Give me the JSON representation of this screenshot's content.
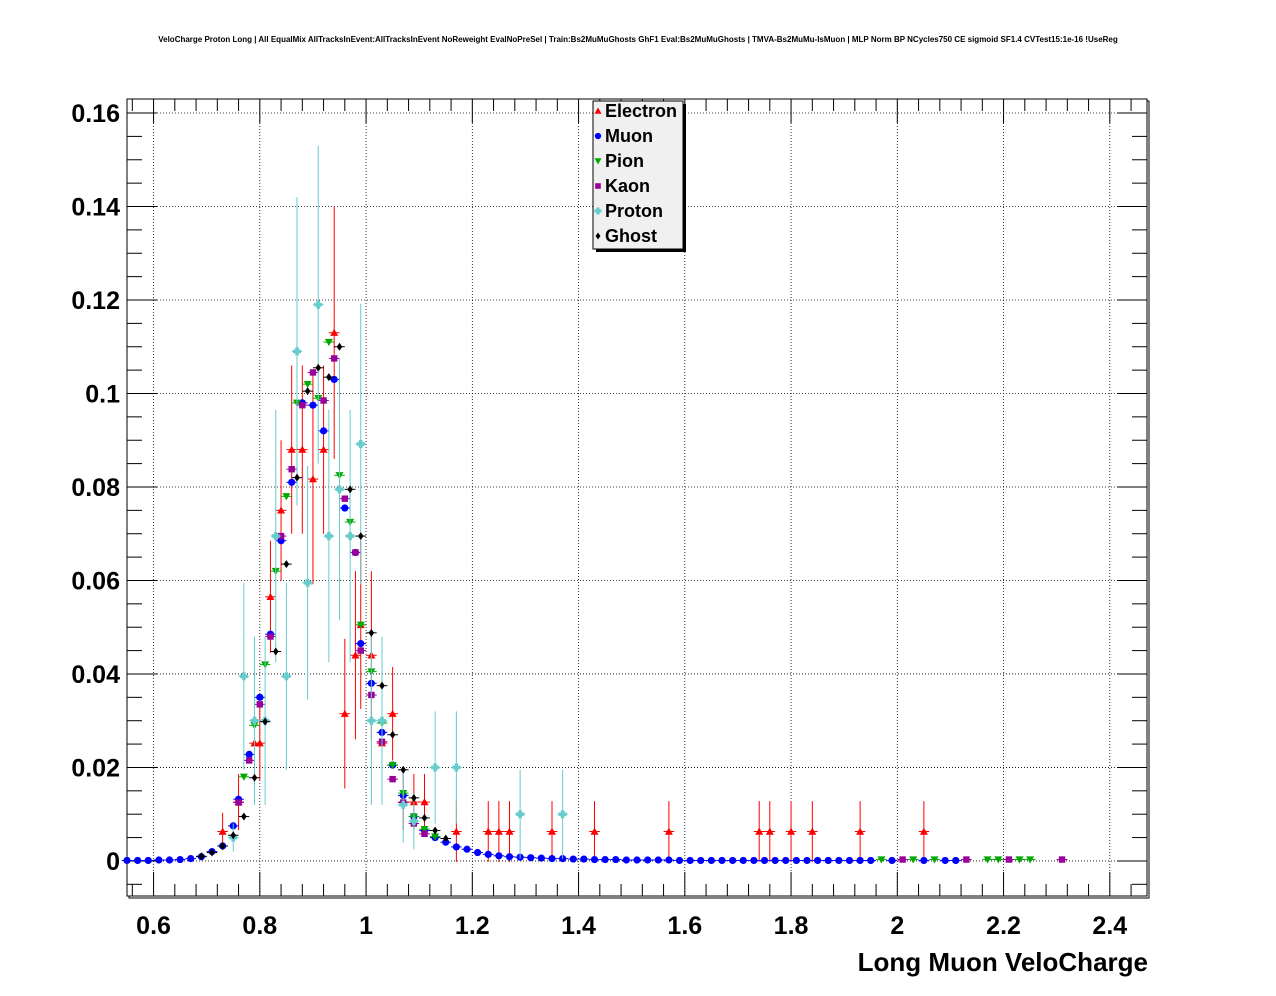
{
  "chart_data": {
    "type": "scatter",
    "title": "VeloCharge Proton Long | All EqualMix AllTracksInEvent:AllTracksInEvent NoReweight EvalNoPreSel | Train:Bs2MuMuGhosts GhF1 Eval:Bs2MuMuGhosts | TMVA-Bs2MuMu-IsMuon | MLP Norm BP NCycles750 CE sigmoid SF1.4 CVTest15:1e-16 !UseReg",
    "xlabel": "Long Muon VeloCharge",
    "ylabel": "",
    "xlim": [
      0.55,
      2.47
    ],
    "ylim": [
      -0.0075,
      0.163
    ],
    "grid": true,
    "legend_position": "top-center",
    "x_ticks": [
      "0.6",
      "0.8",
      "1",
      "1.2",
      "1.4",
      "1.6",
      "1.8",
      "2",
      "2.2",
      "2.4"
    ],
    "y_ticks": [
      "0",
      "0.02",
      "0.04",
      "0.06",
      "0.08",
      "0.1",
      "0.12",
      "0.14",
      "0.16"
    ],
    "series": [
      {
        "name": "Electron",
        "color": "#ff0000",
        "marker": "triangle-up",
        "points": [
          [
            0.73,
            0.0063,
            0.004
          ],
          [
            0.76,
            0.0126,
            0.006
          ],
          [
            0.79,
            0.0252,
            0.008
          ],
          [
            0.8,
            0.0252,
            0.008
          ],
          [
            0.82,
            0.0565,
            0.012
          ],
          [
            0.84,
            0.075,
            0.015
          ],
          [
            0.86,
            0.088,
            0.018
          ],
          [
            0.88,
            0.088,
            0.018
          ],
          [
            0.9,
            0.0817,
            0.0225
          ],
          [
            0.92,
            0.088,
            0.018
          ],
          [
            0.94,
            0.113,
            0.027
          ],
          [
            0.96,
            0.0315,
            0.016
          ],
          [
            0.98,
            0.044,
            0.018
          ],
          [
            0.99,
            0.0505,
            0.018
          ],
          [
            1.01,
            0.044,
            0.018
          ],
          [
            1.03,
            0.0252,
            0.01
          ],
          [
            1.05,
            0.0315,
            0.01
          ],
          [
            1.07,
            0.0126,
            0.006
          ],
          [
            1.09,
            0.0126,
            0.006
          ],
          [
            1.11,
            0.0126,
            0.006
          ],
          [
            1.17,
            0.0063,
            0.0065
          ],
          [
            1.23,
            0.0063,
            0.0065
          ],
          [
            1.25,
            0.0063,
            0.0065
          ],
          [
            1.27,
            0.0063,
            0.0065
          ],
          [
            1.35,
            0.0063,
            0.0065
          ],
          [
            1.43,
            0.0063,
            0.0065
          ],
          [
            1.57,
            0.0063,
            0.0065
          ],
          [
            1.74,
            0.0063,
            0.0065
          ],
          [
            1.76,
            0.0063,
            0.0065
          ],
          [
            1.8,
            0.0063,
            0.0065
          ],
          [
            1.84,
            0.0063,
            0.0065
          ],
          [
            1.93,
            0.0063,
            0.0065
          ],
          [
            2.05,
            0.0063,
            0.0065
          ]
        ]
      },
      {
        "name": "Muon",
        "color": "#0000ff",
        "marker": "circle",
        "points": [
          [
            0.55,
            0.0001,
            0
          ],
          [
            0.57,
            0.0001,
            0
          ],
          [
            0.59,
            0.0001,
            0
          ],
          [
            0.61,
            0.0002,
            0
          ],
          [
            0.63,
            0.0002,
            0
          ],
          [
            0.65,
            0.0003,
            0
          ],
          [
            0.67,
            0.0005,
            0
          ],
          [
            0.69,
            0.0009,
            0
          ],
          [
            0.71,
            0.002,
            0
          ],
          [
            0.73,
            0.0032,
            0
          ],
          [
            0.75,
            0.0075,
            0
          ],
          [
            0.76,
            0.0132,
            0
          ],
          [
            0.78,
            0.0228,
            0
          ],
          [
            0.8,
            0.035,
            0
          ],
          [
            0.82,
            0.0485,
            0
          ],
          [
            0.84,
            0.0685,
            0
          ],
          [
            0.86,
            0.081,
            0
          ],
          [
            0.88,
            0.098,
            0
          ],
          [
            0.9,
            0.0975,
            0
          ],
          [
            0.92,
            0.092,
            0
          ],
          [
            0.94,
            0.103,
            0
          ],
          [
            0.96,
            0.0755,
            0
          ],
          [
            0.98,
            0.066,
            0
          ],
          [
            0.99,
            0.0465,
            0
          ],
          [
            1.01,
            0.038,
            0
          ],
          [
            1.03,
            0.0275,
            0
          ],
          [
            1.05,
            0.0205,
            0
          ],
          [
            1.07,
            0.014,
            0
          ],
          [
            1.09,
            0.0095,
            0
          ],
          [
            1.11,
            0.0065,
            0
          ],
          [
            1.13,
            0.005,
            0
          ],
          [
            1.15,
            0.004,
            0
          ],
          [
            1.17,
            0.003,
            0
          ],
          [
            1.19,
            0.0025,
            0
          ],
          [
            1.21,
            0.0018,
            0
          ],
          [
            1.23,
            0.0014,
            0
          ],
          [
            1.25,
            0.0011,
            0
          ],
          [
            1.27,
            0.0009,
            0
          ],
          [
            1.29,
            0.0008,
            0
          ],
          [
            1.31,
            0.0007,
            0
          ],
          [
            1.33,
            0.0006,
            0
          ],
          [
            1.35,
            0.0005,
            0
          ],
          [
            1.37,
            0.0005,
            0
          ],
          [
            1.39,
            0.0004,
            0
          ],
          [
            1.41,
            0.0004,
            0
          ],
          [
            1.43,
            0.0003,
            0
          ],
          [
            1.45,
            0.0003,
            0
          ],
          [
            1.47,
            0.0003,
            0
          ],
          [
            1.49,
            0.0002,
            0
          ],
          [
            1.51,
            0.0002,
            0
          ],
          [
            1.53,
            0.0002,
            0
          ],
          [
            1.55,
            0.0002,
            0
          ],
          [
            1.57,
            0.0002,
            0
          ],
          [
            1.59,
            0.0001,
            0
          ],
          [
            1.61,
            0.0001,
            0
          ],
          [
            1.63,
            0.0001,
            0
          ],
          [
            1.65,
            0.0001,
            0
          ],
          [
            1.67,
            0.0001,
            0
          ],
          [
            1.69,
            0.0001,
            0
          ],
          [
            1.71,
            0.0001,
            0
          ],
          [
            1.73,
            0.0001,
            0
          ],
          [
            1.75,
            0.0001,
            0
          ],
          [
            1.77,
            0.0001,
            0
          ],
          [
            1.79,
            0.0001,
            0
          ],
          [
            1.81,
            0.0001,
            0
          ],
          [
            1.83,
            0.0001,
            0
          ],
          [
            1.85,
            0.0001,
            0
          ],
          [
            1.87,
            0.0001,
            0
          ],
          [
            1.89,
            0.0001,
            0
          ],
          [
            1.91,
            0.0001,
            0
          ],
          [
            1.93,
            0.0001,
            0
          ],
          [
            1.95,
            0.0001,
            0
          ],
          [
            1.99,
            0.0001,
            0
          ],
          [
            2.05,
            0.0001,
            0
          ],
          [
            2.09,
            0.0001,
            0
          ],
          [
            2.11,
            0.0001,
            0
          ]
        ]
      },
      {
        "name": "Pion",
        "color": "#00aa00",
        "marker": "triangle-down",
        "points": [
          [
            0.77,
            0.018,
            0
          ],
          [
            0.79,
            0.029,
            0
          ],
          [
            0.81,
            0.042,
            0
          ],
          [
            0.83,
            0.062,
            0
          ],
          [
            0.85,
            0.078,
            0
          ],
          [
            0.87,
            0.098,
            0
          ],
          [
            0.89,
            0.102,
            0
          ],
          [
            0.91,
            0.099,
            0
          ],
          [
            0.93,
            0.111,
            0
          ],
          [
            0.95,
            0.0825,
            0
          ],
          [
            0.97,
            0.0725,
            0
          ],
          [
            0.99,
            0.0505,
            0
          ],
          [
            1.01,
            0.0405,
            0
          ],
          [
            1.03,
            0.0295,
            0
          ],
          [
            1.05,
            0.0205,
            0
          ],
          [
            1.07,
            0.0145,
            0
          ],
          [
            1.09,
            0.0095,
            0
          ],
          [
            1.11,
            0.0068,
            0
          ],
          [
            1.13,
            0.0052,
            0
          ],
          [
            1.97,
            0.0003,
            0
          ],
          [
            2.03,
            0.0003,
            0
          ],
          [
            2.07,
            0.0003,
            0
          ],
          [
            2.17,
            0.0003,
            0
          ],
          [
            2.19,
            0.0003,
            0
          ],
          [
            2.23,
            0.0003,
            0
          ],
          [
            2.25,
            0.0003,
            0
          ]
        ]
      },
      {
        "name": "Kaon",
        "color": "#990099",
        "marker": "square",
        "points": [
          [
            0.76,
            0.0125,
            0
          ],
          [
            0.78,
            0.0215,
            0
          ],
          [
            0.8,
            0.0335,
            0
          ],
          [
            0.82,
            0.048,
            0
          ],
          [
            0.84,
            0.0695,
            0
          ],
          [
            0.86,
            0.0838,
            0
          ],
          [
            0.88,
            0.0975,
            0
          ],
          [
            0.9,
            0.1045,
            0
          ],
          [
            0.92,
            0.0985,
            0
          ],
          [
            0.94,
            0.1075,
            0
          ],
          [
            0.96,
            0.0775,
            0
          ],
          [
            0.98,
            0.066,
            0
          ],
          [
            0.99,
            0.045,
            0
          ],
          [
            1.01,
            0.0355,
            0
          ],
          [
            1.03,
            0.0255,
            0
          ],
          [
            1.05,
            0.0175,
            0
          ],
          [
            1.07,
            0.0125,
            0
          ],
          [
            1.09,
            0.008,
            0
          ],
          [
            1.11,
            0.0058,
            0
          ],
          [
            2.01,
            0.0003,
            0
          ],
          [
            2.13,
            0.0003,
            0
          ],
          [
            2.21,
            0.0003,
            0
          ],
          [
            2.31,
            0.0003,
            0
          ]
        ]
      },
      {
        "name": "Proton",
        "color": "#66cccc",
        "marker": "cross",
        "points": [
          [
            0.75,
            0.005,
            0.003
          ],
          [
            0.77,
            0.0395,
            0.02
          ],
          [
            0.79,
            0.03,
            0.018
          ],
          [
            0.81,
            0.03,
            0.018
          ],
          [
            0.83,
            0.0695,
            0.027
          ],
          [
            0.85,
            0.0395,
            0.02
          ],
          [
            0.87,
            0.109,
            0.033
          ],
          [
            0.89,
            0.0595,
            0.025
          ],
          [
            0.91,
            0.119,
            0.034
          ],
          [
            0.93,
            0.0695,
            0.027
          ],
          [
            0.95,
            0.0795,
            0.028
          ],
          [
            0.97,
            0.0695,
            0.027
          ],
          [
            0.99,
            0.0892,
            0.03
          ],
          [
            1.01,
            0.03,
            0.018
          ],
          [
            1.03,
            0.03,
            0.018
          ],
          [
            1.07,
            0.012,
            0.008
          ],
          [
            1.09,
            0.0085,
            0.006
          ],
          [
            1.13,
            0.02,
            0.012
          ],
          [
            1.17,
            0.02,
            0.012
          ],
          [
            1.29,
            0.01,
            0.0095
          ],
          [
            1.37,
            0.01,
            0.0095
          ]
        ]
      },
      {
        "name": "Ghost",
        "color": "#000000",
        "marker": "diamond",
        "points": [
          [
            0.69,
            0.001,
            0
          ],
          [
            0.71,
            0.0018,
            0
          ],
          [
            0.73,
            0.0032,
            0
          ],
          [
            0.75,
            0.0055,
            0
          ],
          [
            0.77,
            0.0095,
            0
          ],
          [
            0.79,
            0.0178,
            0
          ],
          [
            0.81,
            0.0298,
            0
          ],
          [
            0.83,
            0.0448,
            0
          ],
          [
            0.85,
            0.0635,
            0
          ],
          [
            0.87,
            0.082,
            0
          ],
          [
            0.89,
            0.1005,
            0
          ],
          [
            0.91,
            0.1055,
            0
          ],
          [
            0.93,
            0.1035,
            0
          ],
          [
            0.95,
            0.11,
            0
          ],
          [
            0.97,
            0.0795,
            0
          ],
          [
            0.99,
            0.0695,
            0
          ],
          [
            1.01,
            0.0488,
            0
          ],
          [
            1.03,
            0.0375,
            0
          ],
          [
            1.05,
            0.027,
            0
          ],
          [
            1.07,
            0.0195,
            0
          ],
          [
            1.09,
            0.0135,
            0
          ],
          [
            1.11,
            0.0092,
            0
          ],
          [
            1.13,
            0.0065,
            0
          ],
          [
            1.15,
            0.0048,
            0
          ]
        ]
      }
    ]
  }
}
